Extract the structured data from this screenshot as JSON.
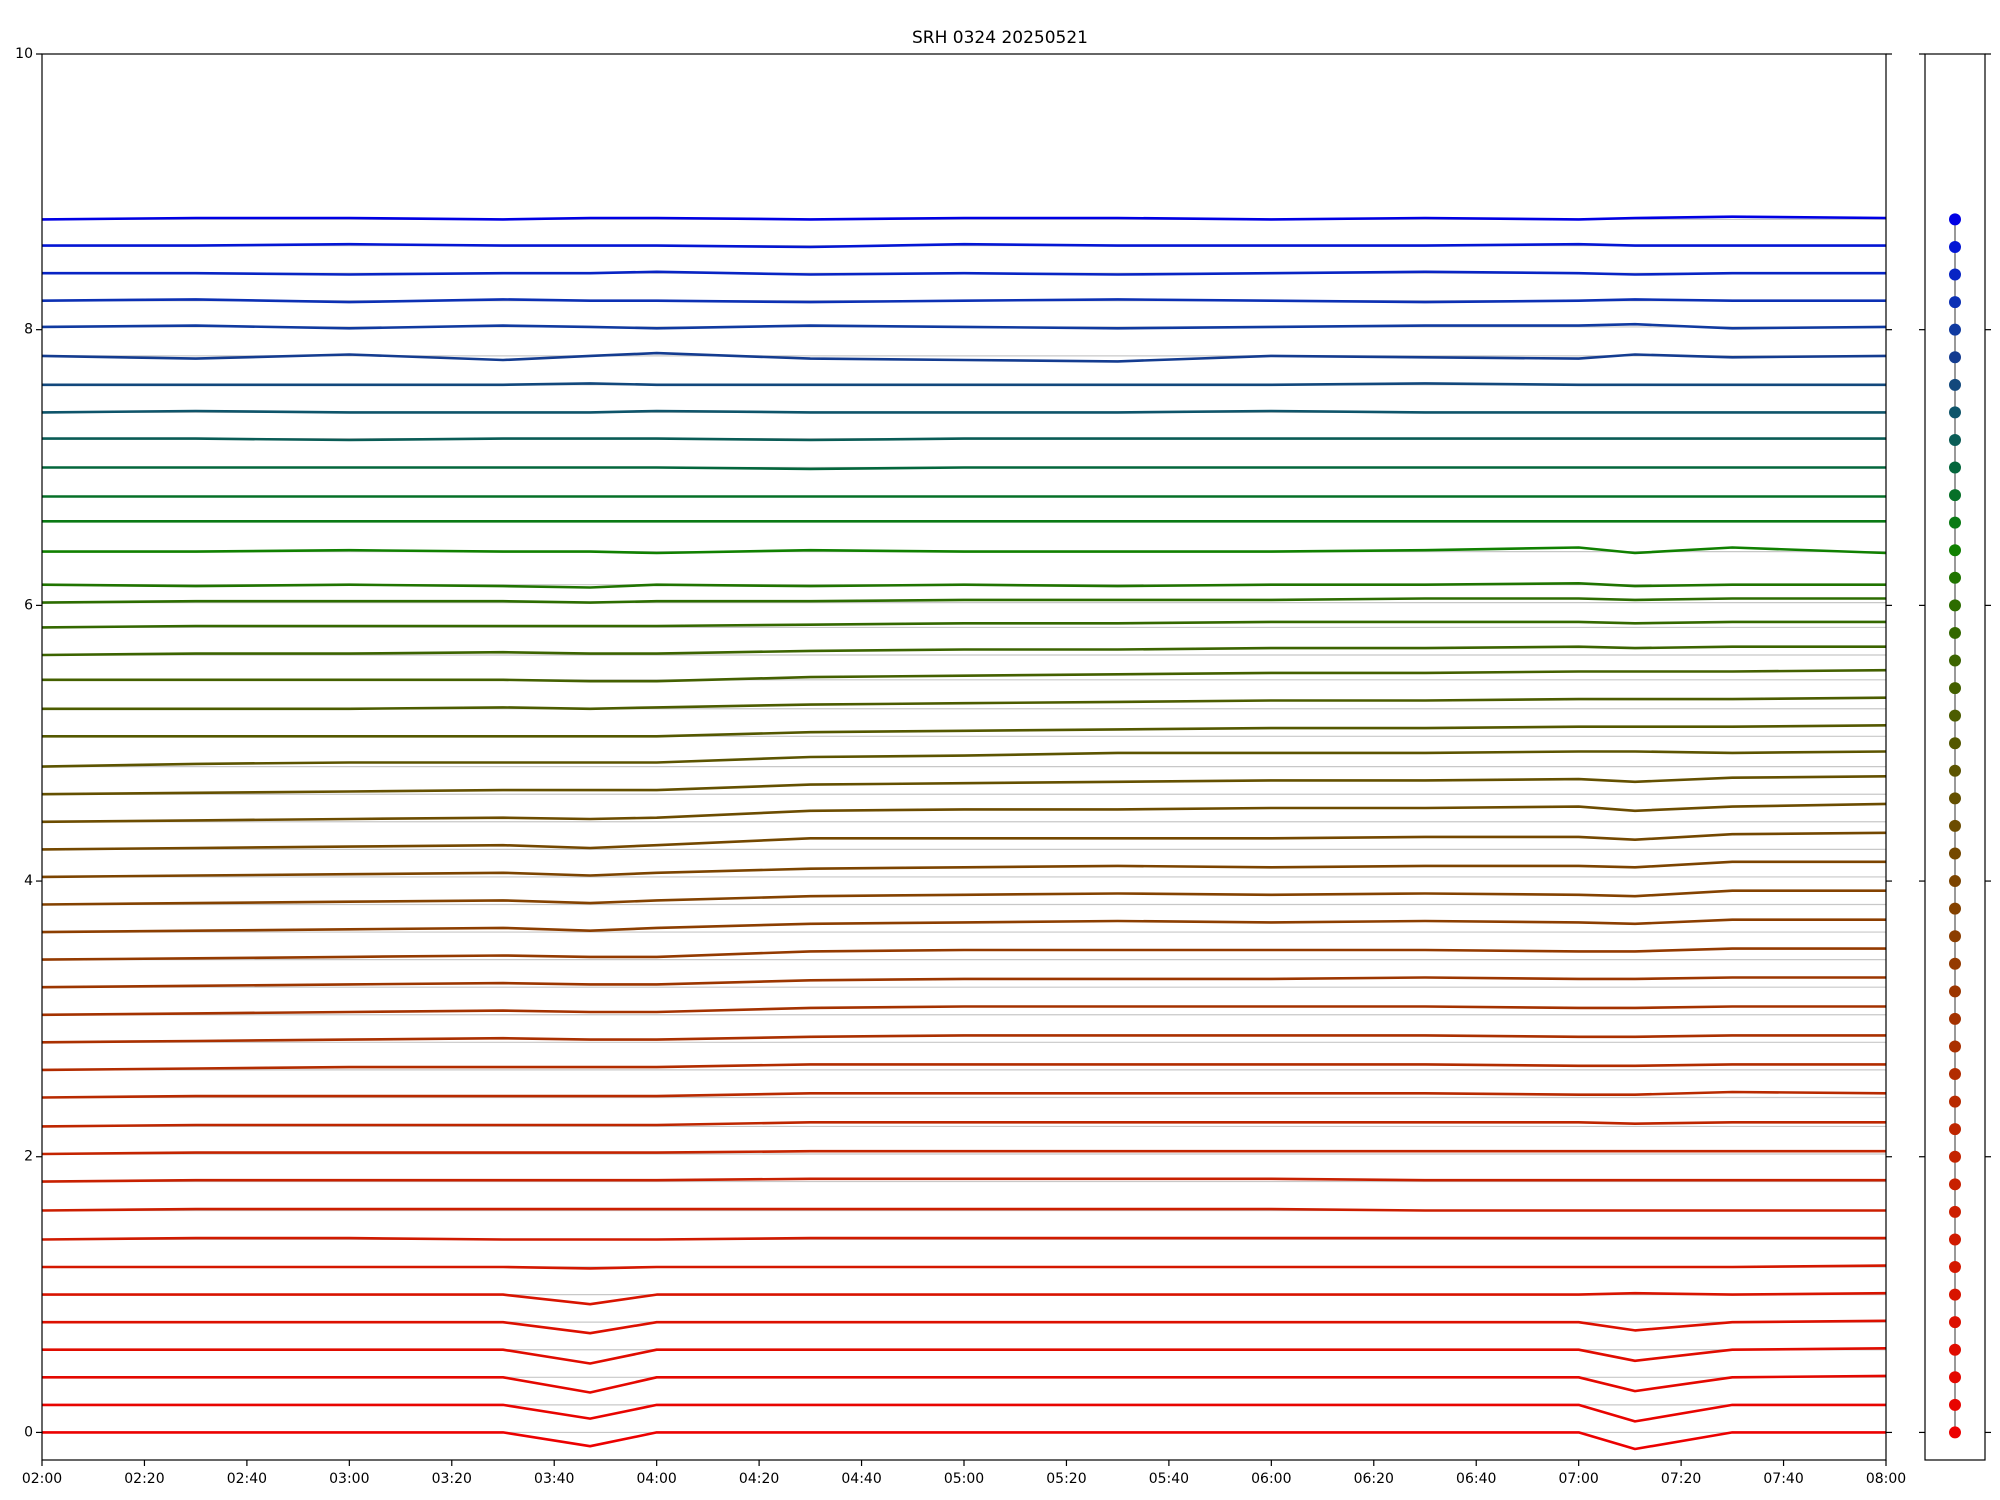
{
  "chart_data": [
    {
      "type": "line",
      "title": "SRH 0324 20250521",
      "x": [
        120,
        150,
        180,
        210,
        227,
        240,
        270,
        300,
        330,
        360,
        390,
        420,
        431,
        450,
        480
      ],
      "xlim": [
        120,
        480
      ],
      "xticks": [
        {
          "value": 120,
          "label": "02:00"
        },
        {
          "value": 140,
          "label": "02:20"
        },
        {
          "value": 160,
          "label": "02:40"
        },
        {
          "value": 180,
          "label": "03:00"
        },
        {
          "value": 200,
          "label": "03:20"
        },
        {
          "value": 220,
          "label": "03:40"
        },
        {
          "value": 240,
          "label": "04:00"
        },
        {
          "value": 260,
          "label": "04:20"
        },
        {
          "value": 280,
          "label": "04:40"
        },
        {
          "value": 300,
          "label": "05:00"
        },
        {
          "value": 320,
          "label": "05:20"
        },
        {
          "value": 340,
          "label": "05:40"
        },
        {
          "value": 360,
          "label": "06:00"
        },
        {
          "value": 380,
          "label": "06:20"
        },
        {
          "value": 400,
          "label": "06:40"
        },
        {
          "value": 420,
          "label": "07:00"
        },
        {
          "value": 440,
          "label": "07:20"
        },
        {
          "value": 460,
          "label": "07:40"
        },
        {
          "value": 480,
          "label": "08:00"
        }
      ],
      "ylim": [
        -0.2,
        10
      ],
      "yticks": [
        0,
        2,
        4,
        6,
        8,
        10
      ],
      "baseline_lines": true,
      "series": [
        {
          "color": "#ec0000",
          "values": [
            0,
            0,
            0,
            0,
            -0.1,
            0,
            0,
            0,
            0,
            0,
            0,
            0,
            -0.12,
            0,
            0
          ]
        },
        {
          "color": "#e80400",
          "values": [
            0.2,
            0.2,
            0.2,
            0.2,
            0.1,
            0.2,
            0.2,
            0.2,
            0.2,
            0.2,
            0.2,
            0.2,
            0.08,
            0.2,
            0.2
          ]
        },
        {
          "color": "#e40800",
          "values": [
            0.4,
            0.4,
            0.4,
            0.4,
            0.29,
            0.4,
            0.4,
            0.4,
            0.4,
            0.4,
            0.4,
            0.4,
            0.3,
            0.4,
            0.41
          ]
        },
        {
          "color": "#e00c00",
          "values": [
            0.6,
            0.6,
            0.6,
            0.6,
            0.5,
            0.6,
            0.6,
            0.6,
            0.6,
            0.6,
            0.6,
            0.6,
            0.52,
            0.6,
            0.61
          ]
        },
        {
          "color": "#dc1000",
          "values": [
            0.8,
            0.8,
            0.8,
            0.8,
            0.72,
            0.8,
            0.8,
            0.8,
            0.8,
            0.8,
            0.8,
            0.8,
            0.74,
            0.8,
            0.81
          ]
        },
        {
          "color": "#d81400",
          "values": [
            1,
            1,
            1,
            1,
            0.93,
            1,
            1,
            1,
            1,
            1,
            1,
            1,
            1.01,
            1,
            1.01
          ]
        },
        {
          "color": "#d41800",
          "values": [
            1.2,
            1.2,
            1.2,
            1.2,
            1.19,
            1.2,
            1.2,
            1.2,
            1.2,
            1.2,
            1.2,
            1.2,
            1.2,
            1.2,
            1.21
          ]
        },
        {
          "color": "#d01a00",
          "values": [
            1.4,
            1.41,
            1.41,
            1.4,
            1.4,
            1.4,
            1.41,
            1.41,
            1.41,
            1.41,
            1.41,
            1.41,
            1.41,
            1.41,
            1.41
          ]
        },
        {
          "color": "#cc1e00",
          "values": [
            1.61,
            1.62,
            1.62,
            1.62,
            1.62,
            1.62,
            1.62,
            1.62,
            1.62,
            1.62,
            1.61,
            1.61,
            1.61,
            1.61,
            1.61
          ]
        },
        {
          "color": "#c82000",
          "values": [
            1.82,
            1.83,
            1.83,
            1.83,
            1.83,
            1.83,
            1.84,
            1.84,
            1.84,
            1.84,
            1.83,
            1.83,
            1.83,
            1.83,
            1.83
          ]
        },
        {
          "color": "#c42400",
          "values": [
            2.02,
            2.03,
            2.03,
            2.03,
            2.03,
            2.03,
            2.04,
            2.04,
            2.04,
            2.04,
            2.04,
            2.04,
            2.04,
            2.04,
            2.04
          ]
        },
        {
          "color": "#be2600",
          "values": [
            2.22,
            2.23,
            2.23,
            2.23,
            2.23,
            2.23,
            2.25,
            2.25,
            2.25,
            2.25,
            2.25,
            2.25,
            2.24,
            2.25,
            2.25
          ]
        },
        {
          "color": "#b82a00",
          "values": [
            2.43,
            2.44,
            2.44,
            2.44,
            2.44,
            2.44,
            2.46,
            2.46,
            2.46,
            2.46,
            2.46,
            2.45,
            2.45,
            2.47,
            2.46
          ]
        },
        {
          "color": "#b22c00",
          "values": [
            2.63,
            2.64,
            2.65,
            2.65,
            2.65,
            2.65,
            2.67,
            2.67,
            2.67,
            2.67,
            2.67,
            2.66,
            2.66,
            2.67,
            2.67
          ]
        },
        {
          "color": "#aa3000",
          "values": [
            2.83,
            2.84,
            2.85,
            2.86,
            2.85,
            2.85,
            2.87,
            2.88,
            2.88,
            2.88,
            2.88,
            2.87,
            2.87,
            2.88,
            2.88
          ]
        },
        {
          "color": "#a43200",
          "values": [
            3.03,
            3.04,
            3.05,
            3.06,
            3.05,
            3.05,
            3.08,
            3.09,
            3.09,
            3.09,
            3.09,
            3.08,
            3.08,
            3.09,
            3.09
          ]
        },
        {
          "color": "#9c3600",
          "values": [
            3.23,
            3.24,
            3.25,
            3.26,
            3.25,
            3.25,
            3.28,
            3.29,
            3.29,
            3.29,
            3.3,
            3.29,
            3.29,
            3.3,
            3.3
          ]
        },
        {
          "color": "#943a00",
          "values": [
            3.43,
            3.44,
            3.45,
            3.46,
            3.45,
            3.45,
            3.49,
            3.5,
            3.5,
            3.5,
            3.5,
            3.49,
            3.49,
            3.51,
            3.51
          ]
        },
        {
          "color": "#8c3e00",
          "values": [
            3.63,
            3.64,
            3.65,
            3.66,
            3.64,
            3.66,
            3.69,
            3.7,
            3.71,
            3.7,
            3.71,
            3.7,
            3.69,
            3.72,
            3.72
          ]
        },
        {
          "color": "#844200",
          "values": [
            3.83,
            3.84,
            3.85,
            3.86,
            3.84,
            3.86,
            3.89,
            3.9,
            3.91,
            3.9,
            3.91,
            3.9,
            3.89,
            3.93,
            3.93
          ]
        },
        {
          "color": "#7c4400",
          "values": [
            4.03,
            4.04,
            4.05,
            4.06,
            4.04,
            4.06,
            4.09,
            4.1,
            4.11,
            4.1,
            4.11,
            4.11,
            4.1,
            4.14,
            4.14
          ]
        },
        {
          "color": "#744800",
          "values": [
            4.23,
            4.24,
            4.25,
            4.26,
            4.24,
            4.26,
            4.31,
            4.31,
            4.31,
            4.31,
            4.32,
            4.32,
            4.3,
            4.34,
            4.35
          ]
        },
        {
          "color": "#6c4c00",
          "values": [
            4.43,
            4.44,
            4.45,
            4.46,
            4.45,
            4.46,
            4.51,
            4.52,
            4.52,
            4.53,
            4.53,
            4.54,
            4.51,
            4.54,
            4.56
          ]
        },
        {
          "color": "#645000",
          "values": [
            4.63,
            4.64,
            4.65,
            4.66,
            4.66,
            4.66,
            4.7,
            4.71,
            4.72,
            4.73,
            4.73,
            4.74,
            4.72,
            4.75,
            4.76
          ]
        },
        {
          "color": "#5c5400",
          "values": [
            4.83,
            4.85,
            4.86,
            4.86,
            4.86,
            4.86,
            4.9,
            4.91,
            4.93,
            4.93,
            4.93,
            4.94,
            4.94,
            4.93,
            4.94
          ]
        },
        {
          "color": "#545800",
          "values": [
            5.05,
            5.05,
            5.05,
            5.05,
            5.05,
            5.05,
            5.08,
            5.09,
            5.1,
            5.11,
            5.11,
            5.12,
            5.12,
            5.12,
            5.13
          ]
        },
        {
          "color": "#4c5c00",
          "values": [
            5.25,
            5.25,
            5.25,
            5.26,
            5.25,
            5.26,
            5.28,
            5.29,
            5.3,
            5.31,
            5.31,
            5.32,
            5.32,
            5.32,
            5.33
          ]
        },
        {
          "color": "#446000",
          "values": [
            5.46,
            5.46,
            5.46,
            5.46,
            5.45,
            5.45,
            5.48,
            5.49,
            5.5,
            5.51,
            5.51,
            5.52,
            5.52,
            5.52,
            5.53
          ]
        },
        {
          "color": "#3c6400",
          "values": [
            5.64,
            5.65,
            5.65,
            5.66,
            5.65,
            5.65,
            5.67,
            5.68,
            5.68,
            5.69,
            5.69,
            5.7,
            5.69,
            5.7,
            5.7
          ]
        },
        {
          "color": "#346800",
          "values": [
            5.84,
            5.85,
            5.85,
            5.85,
            5.85,
            5.85,
            5.86,
            5.87,
            5.87,
            5.88,
            5.88,
            5.88,
            5.87,
            5.88,
            5.88
          ]
        },
        {
          "color": "#2c6c00",
          "values": [
            6.02,
            6.03,
            6.03,
            6.03,
            6.02,
            6.03,
            6.03,
            6.04,
            6.04,
            6.04,
            6.05,
            6.05,
            6.04,
            6.05,
            6.05
          ]
        },
        {
          "color": "#207400",
          "values": [
            6.15,
            6.14,
            6.15,
            6.14,
            6.13,
            6.15,
            6.14,
            6.15,
            6.14,
            6.15,
            6.15,
            6.16,
            6.14,
            6.15,
            6.15
          ]
        },
        {
          "color": "#108000",
          "values": [
            6.39,
            6.39,
            6.4,
            6.39,
            6.39,
            6.38,
            6.4,
            6.39,
            6.39,
            6.39,
            6.4,
            6.42,
            6.38,
            6.42,
            6.38
          ]
        },
        {
          "color": "#0a7a14",
          "values": [
            6.61,
            6.61,
            6.61,
            6.61,
            6.61,
            6.61,
            6.61,
            6.61,
            6.61,
            6.61,
            6.61,
            6.61,
            6.61,
            6.61,
            6.61
          ]
        },
        {
          "color": "#067028",
          "values": [
            6.79,
            6.79,
            6.79,
            6.79,
            6.79,
            6.79,
            6.79,
            6.79,
            6.79,
            6.79,
            6.79,
            6.79,
            6.79,
            6.79,
            6.79
          ]
        },
        {
          "color": "#04663c",
          "values": [
            7,
            7,
            7,
            7,
            7,
            7,
            6.99,
            7,
            7,
            7,
            7,
            7,
            7,
            7,
            7
          ]
        },
        {
          "color": "#0a5c56",
          "values": [
            7.21,
            7.21,
            7.2,
            7.21,
            7.21,
            7.21,
            7.2,
            7.21,
            7.21,
            7.21,
            7.21,
            7.21,
            7.21,
            7.21,
            7.21
          ]
        },
        {
          "color": "#0e546a",
          "values": [
            7.4,
            7.41,
            7.4,
            7.4,
            7.4,
            7.41,
            7.4,
            7.4,
            7.4,
            7.41,
            7.4,
            7.4,
            7.4,
            7.4,
            7.4
          ]
        },
        {
          "color": "#12487c",
          "values": [
            7.6,
            7.6,
            7.6,
            7.6,
            7.61,
            7.6,
            7.6,
            7.6,
            7.6,
            7.6,
            7.61,
            7.6,
            7.6,
            7.6,
            7.6
          ]
        },
        {
          "color": "#143c90",
          "values": [
            7.81,
            7.79,
            7.82,
            7.78,
            7.81,
            7.83,
            7.79,
            7.78,
            7.77,
            7.81,
            7.8,
            7.79,
            7.82,
            7.8,
            7.81
          ]
        },
        {
          "color": "#103aa0",
          "values": [
            8.02,
            8.03,
            8.01,
            8.03,
            8.02,
            8.01,
            8.03,
            8.02,
            8.01,
            8.02,
            8.03,
            8.03,
            8.04,
            8.01,
            8.02
          ]
        },
        {
          "color": "#0c30b4",
          "values": [
            8.21,
            8.22,
            8.2,
            8.22,
            8.21,
            8.21,
            8.2,
            8.21,
            8.22,
            8.21,
            8.2,
            8.21,
            8.22,
            8.21,
            8.21
          ]
        },
        {
          "color": "#0824c4",
          "values": [
            8.41,
            8.41,
            8.4,
            8.41,
            8.41,
            8.42,
            8.4,
            8.41,
            8.4,
            8.41,
            8.42,
            8.41,
            8.4,
            8.41,
            8.41
          ]
        },
        {
          "color": "#0416d4",
          "values": [
            8.61,
            8.61,
            8.62,
            8.61,
            8.61,
            8.61,
            8.6,
            8.62,
            8.61,
            8.61,
            8.61,
            8.62,
            8.61,
            8.61,
            8.61
          ]
        },
        {
          "color": "#0000e4",
          "values": [
            8.8,
            8.81,
            8.81,
            8.8,
            8.81,
            8.81,
            8.8,
            8.81,
            8.81,
            8.8,
            8.81,
            8.8,
            8.81,
            8.82,
            8.81
          ]
        }
      ]
    },
    {
      "type": "dots",
      "ylim": [
        -0.2,
        10
      ],
      "yticks": [
        0,
        2,
        4,
        6,
        8,
        10
      ],
      "values": [
        0,
        0.2,
        0.4,
        0.6,
        0.8,
        1,
        1.2,
        1.4,
        1.6,
        1.8,
        2,
        2.2,
        2.4,
        2.6,
        2.8,
        3,
        3.2,
        3.4,
        3.6,
        3.8,
        4,
        4.2,
        4.4,
        4.6,
        4.8,
        5,
        5.2,
        5.4,
        5.6,
        5.8,
        6,
        6.2,
        6.4,
        6.6,
        6.8,
        7,
        7.2,
        7.4,
        7.6,
        7.8,
        8,
        8.2,
        8.4,
        8.6,
        8.8
      ],
      "colors": [
        "#ec0000",
        "#e80400",
        "#e40800",
        "#e00c00",
        "#dc1000",
        "#d81400",
        "#d41800",
        "#d01a00",
        "#cc1e00",
        "#c82000",
        "#c42400",
        "#be2600",
        "#b82a00",
        "#b22c00",
        "#aa3000",
        "#a43200",
        "#9c3600",
        "#943a00",
        "#8c3e00",
        "#844200",
        "#7c4400",
        "#744800",
        "#6c4c00",
        "#645000",
        "#5c5400",
        "#545800",
        "#4c5c00",
        "#446000",
        "#3c6400",
        "#346800",
        "#2c6c00",
        "#207400",
        "#108000",
        "#0a7a14",
        "#067028",
        "#04663c",
        "#0a5c56",
        "#0e546a",
        "#12487c",
        "#143c90",
        "#103aa0",
        "#0c30b4",
        "#0824c4",
        "#0416d4",
        "#0000e4"
      ]
    }
  ]
}
